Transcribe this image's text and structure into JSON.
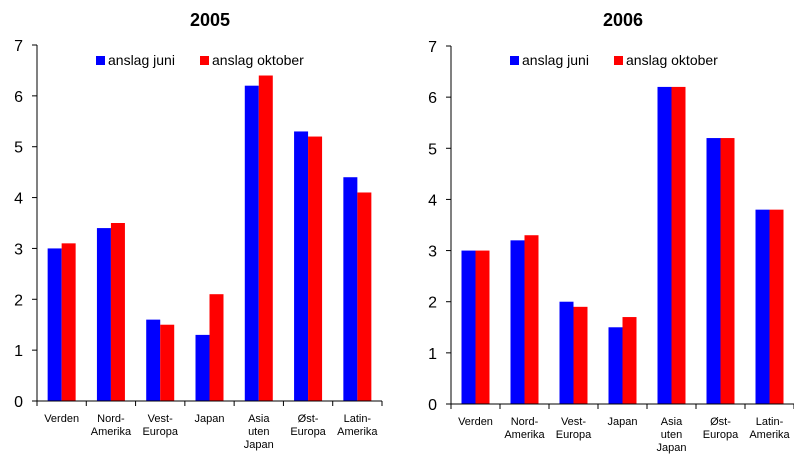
{
  "charts": [
    {
      "type": "bar",
      "title": "2005",
      "categories": [
        [
          "Verden"
        ],
        [
          "Nord-",
          "Amerika"
        ],
        [
          "Vest-",
          "Europa"
        ],
        [
          "Japan"
        ],
        [
          "Asia",
          "uten",
          "Japan"
        ],
        [
          "Øst-",
          "Europa"
        ],
        [
          "Latin-",
          "Amerika"
        ]
      ],
      "yticks": [
        "0",
        "1",
        "2",
        "3",
        "4",
        "5",
        "6",
        "7"
      ],
      "ylim": [
        0,
        7
      ],
      "legend": [
        "anslag juni",
        "anslag oktober"
      ]
    },
    {
      "type": "bar",
      "title": "2006",
      "categories": [
        [
          "Verden"
        ],
        [
          "Nord-",
          "Amerika"
        ],
        [
          "Vest-",
          "Europa"
        ],
        [
          "Japan"
        ],
        [
          "Asia",
          "uten",
          "Japan"
        ],
        [
          "Øst-",
          "Europa"
        ],
        [
          "Latin-",
          "Amerika"
        ]
      ],
      "yticks": [
        "0",
        "1",
        "2",
        "3",
        "4",
        "5",
        "6",
        "7"
      ],
      "ylim": [
        0,
        7
      ],
      "legend": [
        "anslag juni",
        "anslag oktober"
      ]
    }
  ],
  "chart_data": [
    {
      "type": "bar",
      "title": "2005",
      "categories": [
        "Verden",
        "Nord-Amerika",
        "Vest-Europa",
        "Japan",
        "Asia uten Japan",
        "Øst-Europa",
        "Latin-Amerika"
      ],
      "series": [
        {
          "name": "anslag juni",
          "color": "#0000ff",
          "values": [
            3.0,
            3.4,
            1.6,
            1.3,
            6.2,
            5.3,
            4.4
          ]
        },
        {
          "name": "anslag oktober",
          "color": "#ff0000",
          "values": [
            3.1,
            3.5,
            1.5,
            2.1,
            6.4,
            5.2,
            4.1
          ]
        }
      ],
      "ylim": [
        0,
        7
      ],
      "grid": false,
      "legend_position": "top-center"
    },
    {
      "type": "bar",
      "title": "2006",
      "categories": [
        "Verden",
        "Nord-Amerika",
        "Vest-Europa",
        "Japan",
        "Asia uten Japan",
        "Øst-Europa",
        "Latin-Amerika"
      ],
      "series": [
        {
          "name": "anslag juni",
          "color": "#0000ff",
          "values": [
            3.0,
            3.2,
            2.0,
            1.5,
            6.2,
            5.2,
            3.8
          ]
        },
        {
          "name": "anslag oktober",
          "color": "#ff0000",
          "values": [
            3.0,
            3.3,
            1.9,
            1.7,
            6.2,
            5.2,
            3.8
          ]
        }
      ],
      "ylim": [
        0,
        7
      ],
      "grid": false,
      "legend_position": "top-center"
    }
  ]
}
